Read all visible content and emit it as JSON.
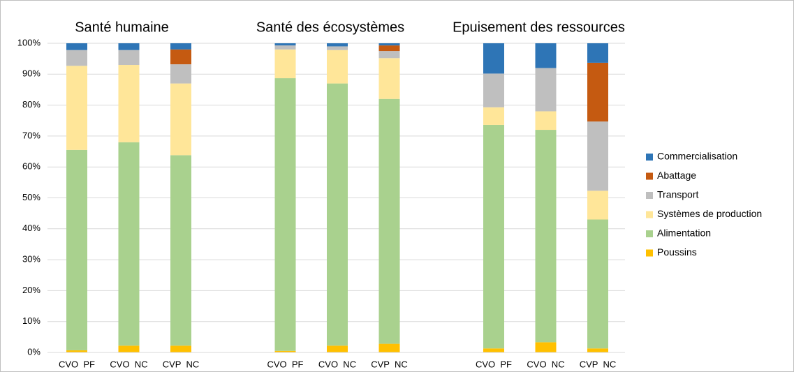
{
  "chart_data": {
    "type": "stacked_bar",
    "groups": [
      "Santé humaine",
      "Santé des écosystèmes",
      "Epuisement des ressources"
    ],
    "categories": [
      "CVO  PF",
      "CVO  NC",
      "CVP  NC",
      "CVO  PF",
      "CVO  NC",
      "CVP  NC",
      "CVO  PF",
      "CVO  NC",
      "CVP  NC"
    ],
    "series": [
      {
        "name": "Poussins",
        "color": "#ffc000",
        "values": [
          0.7,
          2.2,
          2.2,
          0.5,
          2.2,
          2.8,
          1.3,
          3.3,
          1.3
        ]
      },
      {
        "name": "Alimentation",
        "color": "#a9d18e",
        "values": [
          64.8,
          65.8,
          61.6,
          88.2,
          84.8,
          79.2,
          72.3,
          68.7,
          41.7
        ]
      },
      {
        "name": "Systèmes de production",
        "color": "#ffe699",
        "values": [
          27.2,
          25,
          23.2,
          9.3,
          10.8,
          13.2,
          5.7,
          6,
          9.3
        ]
      },
      {
        "name": "Transport",
        "color": "#bfbfbf",
        "values": [
          5.1,
          4.8,
          6.2,
          1.3,
          1.2,
          2.3,
          10.9,
          14,
          22.4
        ]
      },
      {
        "name": "Abattage",
        "color": "#c55a11",
        "values": [
          0,
          0,
          4.8,
          0,
          0,
          1.8,
          0,
          0,
          19
        ]
      },
      {
        "name": "Commercialisation",
        "color": "#2e75b6",
        "values": [
          2.2,
          2.2,
          2,
          0.7,
          1,
          0.7,
          9.8,
          8,
          6.3
        ]
      }
    ],
    "ylim": [
      0,
      100
    ],
    "yticks": [
      {
        "value": 0,
        "label": "0%"
      },
      {
        "value": 10,
        "label": "10%"
      },
      {
        "value": 20,
        "label": "20%"
      },
      {
        "value": 30,
        "label": "30%"
      },
      {
        "value": 40,
        "label": "40%"
      },
      {
        "value": 50,
        "label": "50%"
      },
      {
        "value": 60,
        "label": "60%"
      },
      {
        "value": 70,
        "label": "70%"
      },
      {
        "value": 80,
        "label": "80%"
      },
      {
        "value": 90,
        "label": "90%"
      },
      {
        "value": 100,
        "label": "100%"
      }
    ],
    "grid": true,
    "legend": "right"
  }
}
